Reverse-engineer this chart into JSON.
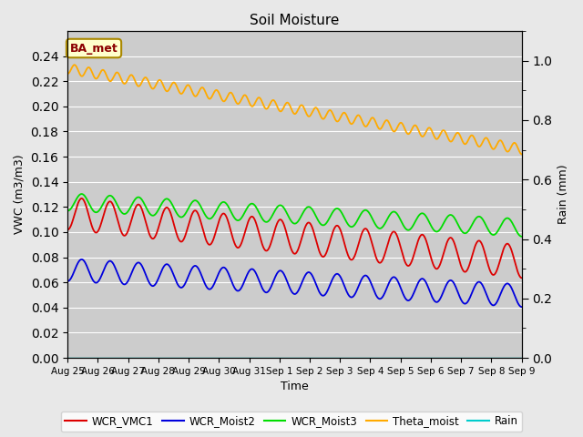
{
  "title": "Soil Moisture",
  "ylabel_left": "VWC (m3/m3)",
  "ylabel_right": "Rain (mm)",
  "xlabel": "Time",
  "annotation": "BA_met",
  "background_color": "#e8e8e8",
  "plot_bg_color": "#cccccc",
  "ylim_left": [
    0.0,
    0.26
  ],
  "ylim_right": [
    0.0,
    1.1
  ],
  "yticks_left": [
    0.0,
    0.02,
    0.04,
    0.06,
    0.08,
    0.1,
    0.12,
    0.14,
    0.16,
    0.18,
    0.2,
    0.22,
    0.24
  ],
  "yticks_right": [
    0.0,
    0.2,
    0.4,
    0.6,
    0.8,
    1.0
  ],
  "n_days": 16,
  "series": {
    "WCR_VMC1": {
      "color": "#dd0000",
      "base": 0.115,
      "amp": 0.013,
      "trend": -0.00015,
      "period": 1.0
    },
    "WCR_Moist2": {
      "color": "#0000dd",
      "base": 0.07,
      "amp": 0.009,
      "trend": -8e-05,
      "period": 1.0
    },
    "WCR_Moist3": {
      "color": "#00dd00",
      "base": 0.124,
      "amp": 0.007,
      "trend": -8e-05,
      "period": 1.0
    },
    "Theta_moist": {
      "color": "#ffaa00",
      "base": 0.23,
      "amp": 0.004,
      "trend": -0.00025,
      "period": 0.5
    },
    "Rain": {
      "color": "#00cccc",
      "base": 0.0,
      "amp": 0.0,
      "trend": 0.0,
      "period": 1.0
    }
  },
  "tick_labels": [
    "Aug 25",
    "Aug 26",
    "Aug 27",
    "Aug 28",
    "Aug 29",
    "Aug 30",
    "Aug 31",
    "Sep 1",
    "Sep 2",
    "Sep 3",
    "Sep 4",
    "Sep 5",
    "Sep 6",
    "Sep 7",
    "Sep 8",
    "Sep 9"
  ],
  "n_points": 1000
}
